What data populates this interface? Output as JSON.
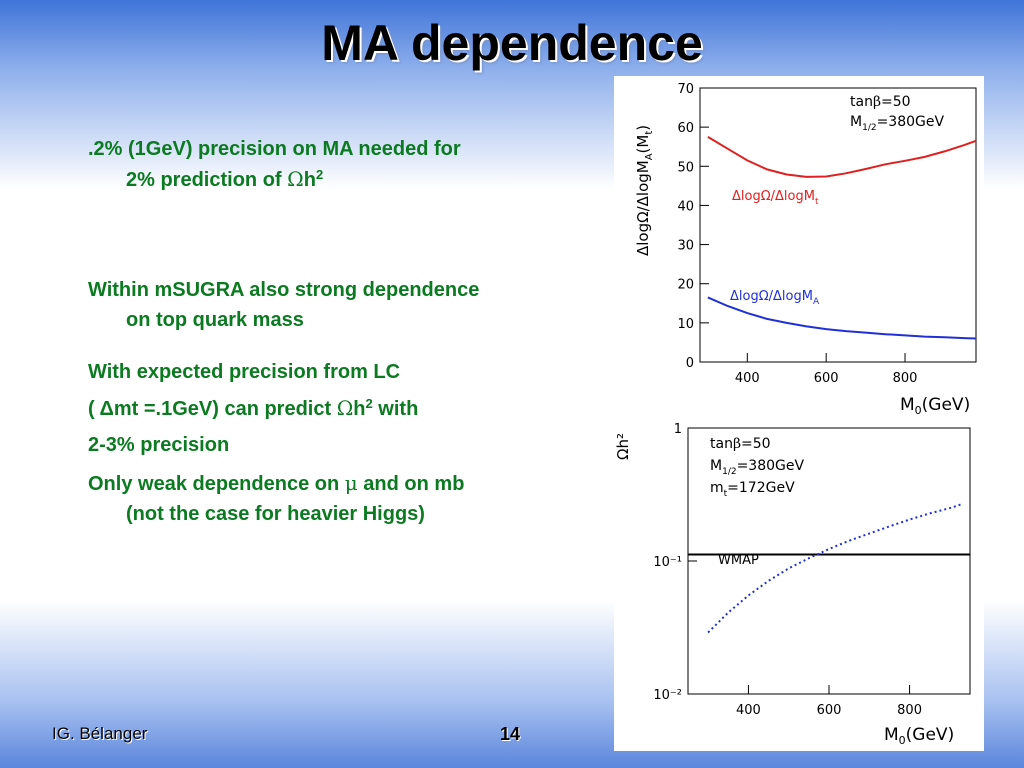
{
  "slide": {
    "title": "MA dependence",
    "footer_author": "IG. Bélanger",
    "page_number": "14"
  },
  "bullets": {
    "b1_line1": ".2% (1GeV) precision on MA needed for",
    "b1_line2": "2% prediction of ",
    "omega": "Ω",
    "h": "h",
    "sup2": "2",
    "b2_line1": "Within mSUGRA also strong dependence",
    "b2_line2": "on top quark mass",
    "b3_line1": "With expected precision from LC",
    "b3_line2_a": "(  Δmt  =.1GeV) can predict   ",
    "b3_line2_b": " with",
    "b3_line3": "2-3% precision",
    "b4_line1_a": "Only weak dependence on ",
    "mu": "μ",
    "b4_line1_b": " and on mb",
    "b4_line2": "(not the case for heavier Higgs)"
  },
  "chart_data": [
    {
      "type": "line",
      "ylabel": "ΔlogΩ/ΔlogMA(Mt)",
      "xlabel": "M0(GeV)",
      "xlim": [
        280,
        980
      ],
      "ylim": [
        0,
        70
      ],
      "x_ticks": [
        "400",
        "600",
        "800"
      ],
      "x_tick_values": [
        400,
        600,
        800
      ],
      "y_ticks": [
        "0",
        "10",
        "20",
        "30",
        "40",
        "50",
        "60",
        "70"
      ],
      "y_tick_values": [
        0,
        10,
        20,
        30,
        40,
        50,
        60,
        70
      ],
      "annotations": [
        "tanβ=50",
        "M1/2=380GeV"
      ],
      "series": [
        {
          "name": "ΔlogΩ/ΔlogMt",
          "color": "#e02020",
          "x": [
            300,
            350,
            400,
            450,
            500,
            550,
            600,
            650,
            700,
            750,
            800,
            850,
            900,
            950,
            980
          ],
          "y": [
            57.5,
            54.5,
            51.5,
            49.2,
            47.9,
            47.3,
            47.4,
            48.2,
            49.3,
            50.5,
            51.4,
            52.4,
            53.8,
            55.4,
            56.5
          ]
        },
        {
          "name": "ΔlogΩ/ΔlogMA",
          "color": "#2030d8",
          "x": [
            300,
            350,
            400,
            450,
            500,
            550,
            600,
            650,
            700,
            750,
            800,
            850,
            900,
            950,
            980
          ],
          "y": [
            16.5,
            14.3,
            12.5,
            11.0,
            10.0,
            9.1,
            8.4,
            7.9,
            7.5,
            7.1,
            6.8,
            6.5,
            6.3,
            6.1,
            6.0
          ]
        }
      ]
    },
    {
      "type": "line",
      "ylabel": "Ωh²",
      "xlabel": "M0(GeV)",
      "yscale": "log",
      "xlim": [
        250,
        950
      ],
      "ylim": [
        0.01,
        1
      ],
      "x_ticks": [
        "400",
        "600",
        "800"
      ],
      "x_tick_values": [
        400,
        600,
        800
      ],
      "y_ticks": [
        "1",
        "10⁻¹",
        "10⁻²"
      ],
      "y_tick_values": [
        1,
        0.1,
        0.01
      ],
      "annotations": [
        "tanβ=50",
        "M1/2=380GeV",
        "mt=172GeV"
      ],
      "series": [
        {
          "name": "WMAP",
          "color": "#000000",
          "style": "solid",
          "x": [
            250,
            950
          ],
          "y": [
            0.112,
            0.112
          ]
        },
        {
          "color": "#2030d8",
          "style": "dotted",
          "x": [
            300,
            350,
            400,
            450,
            500,
            550,
            600,
            650,
            700,
            750,
            800,
            850,
            900,
            930
          ],
          "y": [
            0.029,
            0.041,
            0.055,
            0.071,
            0.088,
            0.105,
            0.123,
            0.142,
            0.161,
            0.182,
            0.205,
            0.228,
            0.25,
            0.268
          ]
        }
      ]
    }
  ]
}
